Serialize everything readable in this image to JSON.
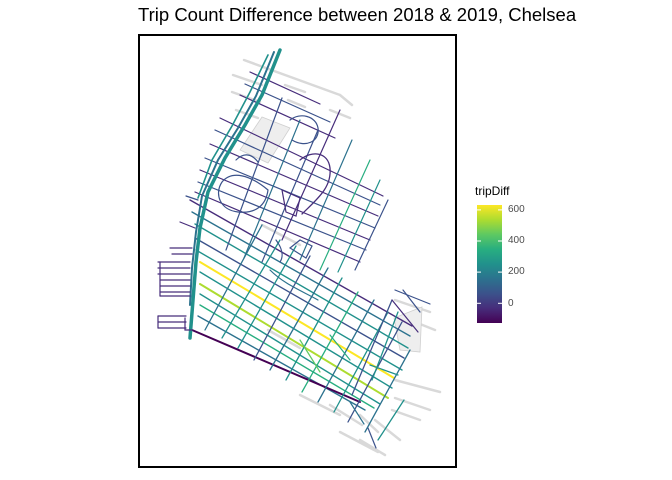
{
  "title": "Trip Count Difference between 2018 & 2019, Chelsea",
  "legend": {
    "title": "tripDiff",
    "ticks": [
      "600",
      "400",
      "200",
      "0"
    ],
    "min": -100,
    "max": 600
  },
  "colors": {
    "frame": "#000000",
    "base_streets": "#d9d9d9",
    "viridis": [
      "#440154",
      "#472d7b",
      "#3b528b",
      "#2c728e",
      "#21918c",
      "#28ae80",
      "#5ec962",
      "#addc30",
      "#fde725"
    ]
  }
}
